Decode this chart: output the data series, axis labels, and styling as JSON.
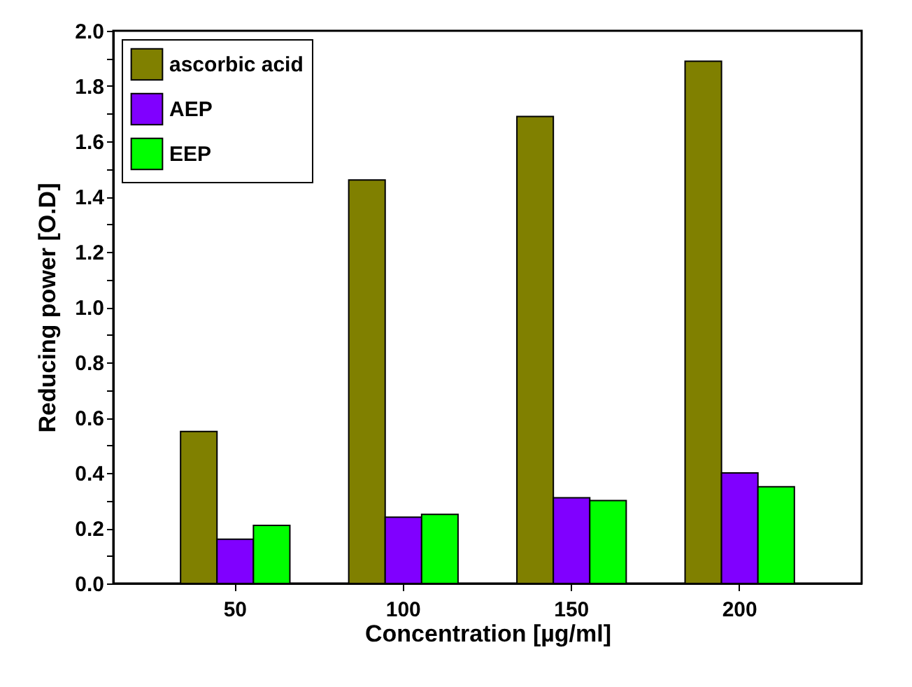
{
  "chart_data": {
    "type": "bar",
    "xlabel": "Concentration [µg/ml]",
    "ylabel": "Reducing power [O.D]",
    "categories": [
      "50",
      "100",
      "150",
      "200"
    ],
    "series": [
      {
        "name": "ascorbic acid",
        "color": "#808000",
        "values": [
          0.55,
          1.46,
          1.69,
          1.89
        ]
      },
      {
        "name": "AEP",
        "color": "#8000ff",
        "values": [
          0.16,
          0.24,
          0.31,
          0.4
        ]
      },
      {
        "name": "EEP",
        "color": "#00ff00",
        "values": [
          0.21,
          0.25,
          0.3,
          0.35
        ]
      }
    ],
    "ylim": [
      0,
      2.0
    ],
    "yticks": [
      {
        "value": 0,
        "label": "0.0"
      },
      {
        "value": 0.1,
        "label": null
      },
      {
        "value": 0.2,
        "label": "0.2"
      },
      {
        "value": 0.3,
        "label": null
      },
      {
        "value": 0.4,
        "label": "0.4"
      },
      {
        "value": 0.5,
        "label": null
      },
      {
        "value": 0.6,
        "label": "0.6"
      },
      {
        "value": 0.7,
        "label": null
      },
      {
        "value": 0.8,
        "label": "0.8"
      },
      {
        "value": 0.9,
        "label": null
      },
      {
        "value": 1.0,
        "label": "1.0"
      },
      {
        "value": 1.1,
        "label": null
      },
      {
        "value": 1.2,
        "label": "1.2"
      },
      {
        "value": 1.3,
        "label": null
      },
      {
        "value": 1.4,
        "label": "1.4"
      },
      {
        "value": 1.5,
        "label": null
      },
      {
        "value": 1.6,
        "label": "1.6"
      },
      {
        "value": 1.7,
        "label": null
      },
      {
        "value": 1.8,
        "label": "1.8"
      },
      {
        "value": 1.9,
        "label": null
      },
      {
        "value": 2.0,
        "label": "2.0"
      }
    ],
    "grid": false,
    "legend": "top left"
  }
}
